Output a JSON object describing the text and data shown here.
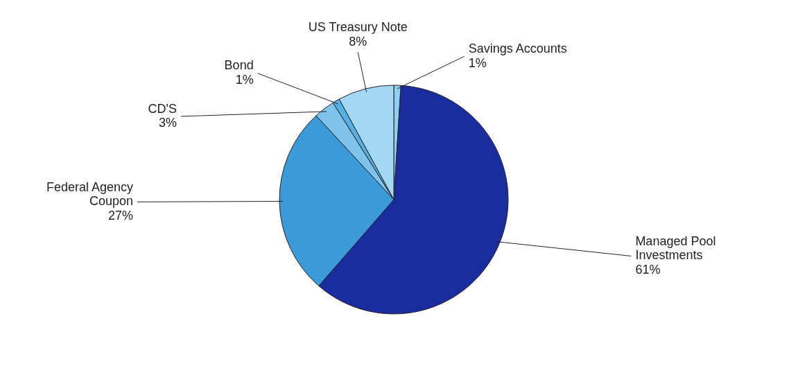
{
  "chart_data": {
    "type": "pie",
    "categories": [
      "Savings Accounts",
      "Managed Pool Investments",
      "Federal Agency Coupon",
      "CD'S",
      "Bond",
      "US Treasury Note"
    ],
    "values": [
      1,
      61,
      27,
      3,
      1,
      8
    ],
    "value_labels": [
      "1%",
      "61%",
      "27%",
      "3%",
      "1%",
      "8%"
    ],
    "colors": [
      "#8fd0f2",
      "#1b2c9e",
      "#3b9bd9",
      "#7fc3ec",
      "#55b0e4",
      "#a3d8f5"
    ]
  }
}
